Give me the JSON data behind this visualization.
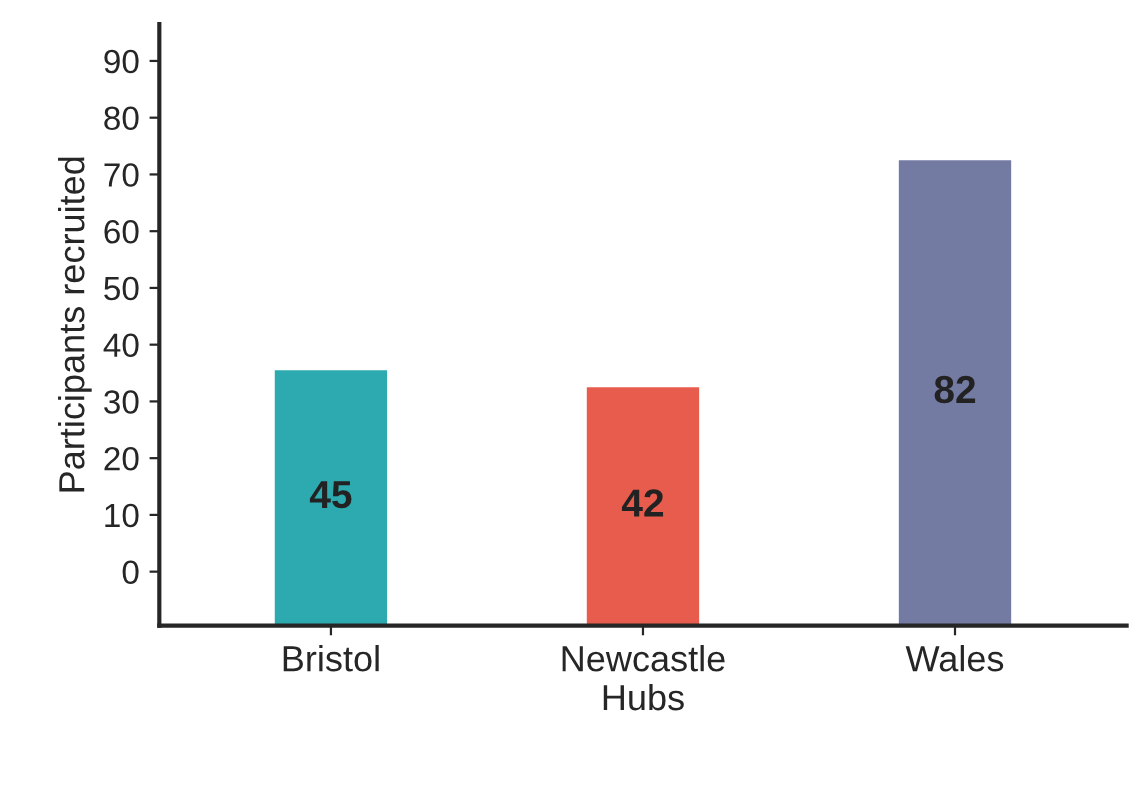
{
  "chart_data": {
    "type": "bar",
    "ylabel": "Participants recruited",
    "categories": [
      "Bristol",
      "Newcastle\nHubs",
      "Wales"
    ],
    "values": [
      45,
      42,
      82
    ],
    "colors": [
      "#2caab0",
      "#e85c4d",
      "#737ba3"
    ],
    "data_labels": true,
    "base": [
      -9.5,
      -9.5,
      -9.5
    ],
    "ylim": [
      -9.5,
      96.5
    ],
    "yticks": [
      0,
      10,
      20,
      30,
      40,
      50,
      60,
      70,
      80,
      90
    ],
    "grid": false
  }
}
